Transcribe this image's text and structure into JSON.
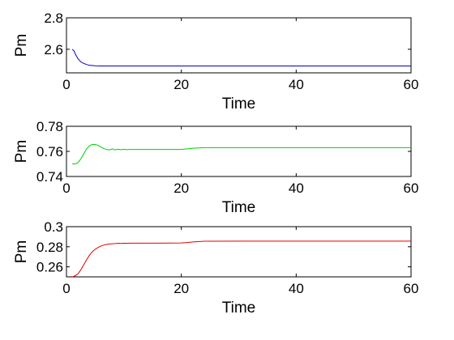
{
  "chart_data": [
    {
      "type": "line",
      "title": "",
      "xlabel": "Time",
      "ylabel": "Pm",
      "xlim": [
        0,
        60
      ],
      "ylim": [
        2.45,
        2.8
      ],
      "xticks": [
        "0",
        "20",
        "40",
        "60"
      ],
      "yticks": [
        "2.6",
        "2.8"
      ],
      "yticks_values": [
        2.6,
        2.8
      ],
      "grid": false,
      "color": "#0000c0",
      "series": [
        {
          "x": [
            1.0,
            1.3,
            1.6,
            2.0,
            2.5,
            3.0,
            3.5,
            4.0,
            5.0,
            6.0,
            8.0,
            10.0,
            15.0,
            20.0,
            30.0,
            40.0,
            50.0,
            60.0
          ],
          "y": [
            2.6,
            2.59,
            2.565,
            2.54,
            2.52,
            2.51,
            2.503,
            2.498,
            2.495,
            2.494,
            2.494,
            2.494,
            2.494,
            2.494,
            2.494,
            2.494,
            2.494,
            2.494
          ]
        }
      ]
    },
    {
      "type": "line",
      "title": "",
      "xlabel": "Time",
      "ylabel": "Pm",
      "xlim": [
        0,
        60
      ],
      "ylim": [
        0.74,
        0.78
      ],
      "xticks": [
        "0",
        "20",
        "40",
        "60"
      ],
      "yticks": [
        "0.74",
        "0.76",
        "0.78"
      ],
      "yticks_values": [
        0.74,
        0.76,
        0.78
      ],
      "grid": false,
      "color": "#00d000",
      "series": [
        {
          "x": [
            1.0,
            1.5,
            2.0,
            2.5,
            3.0,
            3.5,
            4.0,
            4.5,
            5.0,
            5.5,
            6.0,
            6.5,
            7.0,
            7.5,
            8.0,
            8.5,
            9.0,
            9.5,
            10.0,
            10.5,
            11.0,
            12.0,
            14.0,
            16.0,
            18.0,
            20.0,
            21.0,
            22.0,
            24.0,
            30.0,
            40.0,
            50.0,
            60.0
          ],
          "y": [
            0.75,
            0.75,
            0.751,
            0.754,
            0.758,
            0.762,
            0.7645,
            0.7655,
            0.7655,
            0.7648,
            0.7635,
            0.7622,
            0.7615,
            0.7612,
            0.762,
            0.7612,
            0.7618,
            0.7613,
            0.7617,
            0.7614,
            0.7615,
            0.7615,
            0.7615,
            0.7615,
            0.7615,
            0.7615,
            0.762,
            0.7625,
            0.763,
            0.763,
            0.763,
            0.763,
            0.763
          ]
        }
      ]
    },
    {
      "type": "line",
      "title": "",
      "xlabel": "Time",
      "ylabel": "Pm",
      "xlim": [
        0,
        60
      ],
      "ylim": [
        0.25,
        0.3
      ],
      "xticks": [
        "0",
        "20",
        "40",
        "60"
      ],
      "yticks": [
        "0.26",
        "0.28",
        "0.3"
      ],
      "yticks_values": [
        0.26,
        0.28,
        0.3
      ],
      "grid": false,
      "color": "#e00000",
      "series": [
        {
          "x": [
            1.0,
            1.5,
            2.0,
            2.5,
            3.0,
            3.5,
            4.0,
            4.5,
            5.0,
            5.5,
            6.0,
            6.5,
            7.0,
            7.5,
            8.0,
            8.5,
            9.0,
            9.5,
            10.0,
            10.5,
            11.0,
            12.0,
            14.0,
            16.0,
            18.0,
            20.0,
            21.0,
            22.0,
            24.0,
            30.0,
            40.0,
            50.0,
            60.0
          ],
          "y": [
            0.25,
            0.251,
            0.253,
            0.257,
            0.262,
            0.267,
            0.2715,
            0.275,
            0.2775,
            0.2793,
            0.2807,
            0.2817,
            0.2823,
            0.2828,
            0.283,
            0.2832,
            0.2835,
            0.2833,
            0.2836,
            0.2834,
            0.2836,
            0.2836,
            0.2836,
            0.2836,
            0.2837,
            0.2838,
            0.2842,
            0.2848,
            0.2855,
            0.2856,
            0.2856,
            0.2856,
            0.2856
          ]
        }
      ]
    }
  ]
}
